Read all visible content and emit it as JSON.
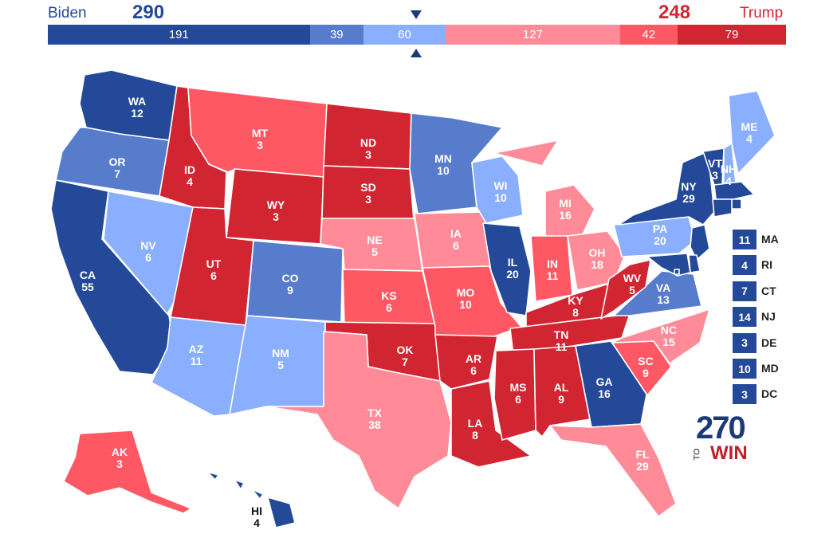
{
  "header": {
    "biden_name": "Biden",
    "biden_total": "290",
    "trump_name": "Trump",
    "trump_total": "248",
    "biden_color": "#244999",
    "trump_color": "#d22532"
  },
  "bar_segments": [
    {
      "label": "191",
      "value": 191,
      "color": "#244999"
    },
    {
      "label": "39",
      "value": 39,
      "color": "#577ccc"
    },
    {
      "label": "60",
      "value": 60,
      "color": "#8aafff"
    },
    {
      "label": "127",
      "value": 127,
      "color": "#ff8b98"
    },
    {
      "label": "42",
      "value": 42,
      "color": "#ff5865"
    },
    {
      "label": "79",
      "value": 79,
      "color": "#d22532"
    }
  ],
  "legend_colors": {
    "safe_d": "#244999",
    "likely_d": "#577ccc",
    "lean_d": "#8aafff",
    "lean_r": "#ff8b98",
    "likely_r": "#ff5865",
    "safe_r": "#d22532",
    "border": "#ffffff"
  },
  "states": [
    {
      "abbr": "WA",
      "votes": "12",
      "rating": "safe_d"
    },
    {
      "abbr": "OR",
      "votes": "7",
      "rating": "likely_d"
    },
    {
      "abbr": "CA",
      "votes": "55",
      "rating": "safe_d"
    },
    {
      "abbr": "NV",
      "votes": "6",
      "rating": "lean_d"
    },
    {
      "abbr": "ID",
      "votes": "4",
      "rating": "safe_r"
    },
    {
      "abbr": "MT",
      "votes": "3",
      "rating": "likely_r"
    },
    {
      "abbr": "WY",
      "votes": "3",
      "rating": "safe_r"
    },
    {
      "abbr": "UT",
      "votes": "6",
      "rating": "safe_r"
    },
    {
      "abbr": "AZ",
      "votes": "11",
      "rating": "lean_d"
    },
    {
      "abbr": "CO",
      "votes": "9",
      "rating": "likely_d"
    },
    {
      "abbr": "NM",
      "votes": "5",
      "rating": "lean_d"
    },
    {
      "abbr": "ND",
      "votes": "3",
      "rating": "safe_r"
    },
    {
      "abbr": "SD",
      "votes": "3",
      "rating": "safe_r"
    },
    {
      "abbr": "NE",
      "votes": "5",
      "rating": "lean_r"
    },
    {
      "abbr": "KS",
      "votes": "6",
      "rating": "likely_r"
    },
    {
      "abbr": "OK",
      "votes": "7",
      "rating": "safe_r"
    },
    {
      "abbr": "TX",
      "votes": "38",
      "rating": "lean_r"
    },
    {
      "abbr": "MN",
      "votes": "10",
      "rating": "likely_d"
    },
    {
      "abbr": "IA",
      "votes": "6",
      "rating": "lean_r"
    },
    {
      "abbr": "MO",
      "votes": "10",
      "rating": "likely_r"
    },
    {
      "abbr": "AR",
      "votes": "6",
      "rating": "safe_r"
    },
    {
      "abbr": "LA",
      "votes": "8",
      "rating": "safe_r"
    },
    {
      "abbr": "WI",
      "votes": "10",
      "rating": "lean_d"
    },
    {
      "abbr": "IL",
      "votes": "20",
      "rating": "safe_d"
    },
    {
      "abbr": "MI",
      "votes": "16",
      "rating": "lean_r"
    },
    {
      "abbr": "IN",
      "votes": "11",
      "rating": "likely_r"
    },
    {
      "abbr": "OH",
      "votes": "18",
      "rating": "lean_r"
    },
    {
      "abbr": "KY",
      "votes": "8",
      "rating": "safe_r"
    },
    {
      "abbr": "TN",
      "votes": "11",
      "rating": "safe_r"
    },
    {
      "abbr": "MS",
      "votes": "6",
      "rating": "safe_r"
    },
    {
      "abbr": "AL",
      "votes": "9",
      "rating": "safe_r"
    },
    {
      "abbr": "GA",
      "votes": "16",
      "rating": "safe_d"
    },
    {
      "abbr": "FL",
      "votes": "29",
      "rating": "lean_r"
    },
    {
      "abbr": "SC",
      "votes": "9",
      "rating": "likely_r"
    },
    {
      "abbr": "NC",
      "votes": "15",
      "rating": "lean_r"
    },
    {
      "abbr": "VA",
      "votes": "13",
      "rating": "likely_d"
    },
    {
      "abbr": "WV",
      "votes": "5",
      "rating": "safe_r"
    },
    {
      "abbr": "PA",
      "votes": "20",
      "rating": "lean_d"
    },
    {
      "abbr": "NY",
      "votes": "29",
      "rating": "safe_d"
    },
    {
      "abbr": "VT",
      "votes": "3",
      "rating": "safe_d"
    },
    {
      "abbr": "NH",
      "votes": "4",
      "rating": "lean_d"
    },
    {
      "abbr": "ME",
      "votes": "4",
      "rating": "lean_d"
    },
    {
      "abbr": "AK",
      "votes": "3",
      "rating": "likely_r"
    },
    {
      "abbr": "HI",
      "votes": "4",
      "rating": "safe_d"
    }
  ],
  "small_states": [
    {
      "abbr": "MA",
      "votes": "11",
      "rating": "safe_d"
    },
    {
      "abbr": "RI",
      "votes": "4",
      "rating": "safe_d"
    },
    {
      "abbr": "CT",
      "votes": "7",
      "rating": "safe_d"
    },
    {
      "abbr": "NJ",
      "votes": "14",
      "rating": "safe_d"
    },
    {
      "abbr": "DE",
      "votes": "3",
      "rating": "safe_d"
    },
    {
      "abbr": "MD",
      "votes": "10",
      "rating": "safe_d"
    },
    {
      "abbr": "DC",
      "votes": "3",
      "rating": "safe_d"
    }
  ],
  "logo": {
    "number": "270",
    "to": "TO",
    "win": "WIN"
  }
}
